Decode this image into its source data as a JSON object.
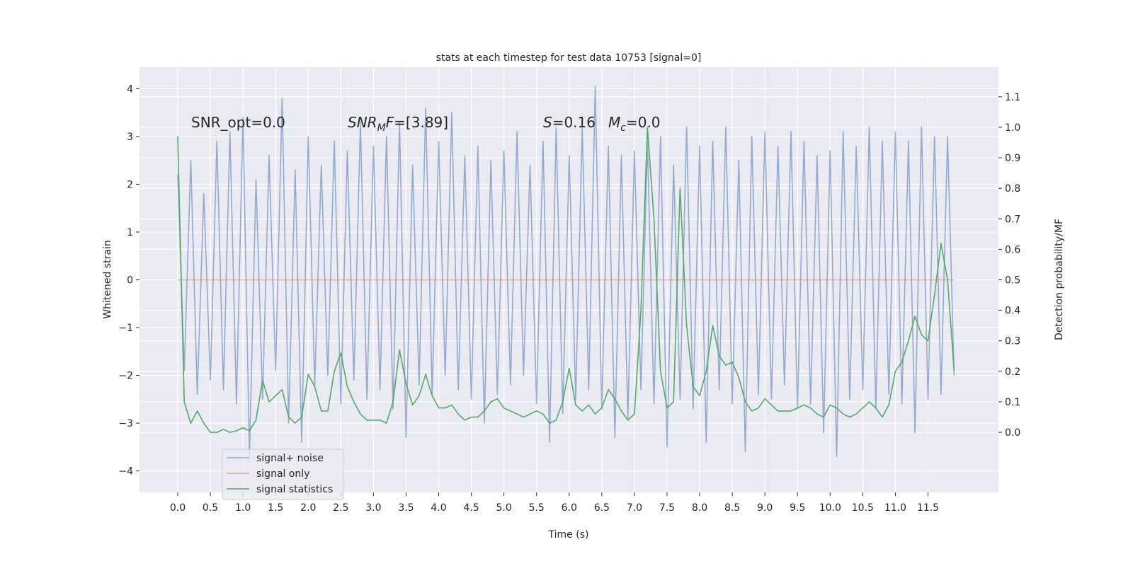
{
  "chart_data": {
    "type": "line",
    "title": "stats at each timestep for test data 10753 [signal=0]",
    "xlabel": "Time (s)",
    "ylabel": "Whitened strain",
    "y2label": "Detection probability/MF",
    "xlim": [
      -0.586,
      12.58
    ],
    "ylim": [
      -4.45,
      4.45
    ],
    "y2lim": [
      -0.197,
      1.197
    ],
    "xticks": [
      {
        "value": 0,
        "label": "0.0"
      },
      {
        "value": 0.5,
        "label": "0.5"
      },
      {
        "value": 1,
        "label": "1.0"
      },
      {
        "value": 1.5,
        "label": "1.5"
      },
      {
        "value": 2,
        "label": "2.0"
      },
      {
        "value": 2.5,
        "label": "2.5"
      },
      {
        "value": 3,
        "label": "3.0"
      },
      {
        "value": 3.5,
        "label": "3.5"
      },
      {
        "value": 4,
        "label": "4.0"
      },
      {
        "value": 4.5,
        "label": "4.5"
      },
      {
        "value": 5,
        "label": "5.0"
      },
      {
        "value": 5.5,
        "label": "5.5"
      },
      {
        "value": 6,
        "label": "6.0"
      },
      {
        "value": 6.5,
        "label": "6.5"
      },
      {
        "value": 7,
        "label": "7.0"
      },
      {
        "value": 7.5,
        "label": "7.5"
      },
      {
        "value": 8,
        "label": "8.0"
      },
      {
        "value": 8.5,
        "label": "8.5"
      },
      {
        "value": 9,
        "label": "9.0"
      },
      {
        "value": 9.5,
        "label": "9.5"
      },
      {
        "value": 10,
        "label": "10.0"
      },
      {
        "value": 10.5,
        "label": "10.5"
      },
      {
        "value": 11,
        "label": "11.0"
      },
      {
        "value": 11.5,
        "label": "11.5"
      }
    ],
    "yticks": [
      {
        "value": -4,
        "label": "−4"
      },
      {
        "value": -3,
        "label": "−3"
      },
      {
        "value": -2,
        "label": "−2"
      },
      {
        "value": -1,
        "label": "−1"
      },
      0,
      1,
      2,
      3,
      4
    ],
    "y2ticks": [
      {
        "value": 0,
        "label": "0.0"
      },
      {
        "value": 0.1,
        "label": "0.1"
      },
      {
        "value": 0.2,
        "label": "0.2"
      },
      {
        "value": 0.3,
        "label": "0.3"
      },
      {
        "value": 0.4,
        "label": "0.4"
      },
      {
        "value": 0.5,
        "label": "0.5"
      },
      {
        "value": 0.6,
        "label": "0.6"
      },
      {
        "value": 0.7,
        "label": "0.7"
      },
      {
        "value": 0.8,
        "label": "0.8"
      },
      {
        "value": 0.9,
        "label": "0.9"
      },
      {
        "value": 1,
        "label": "1.0"
      },
      {
        "value": 1.1,
        "label": "1.1"
      }
    ],
    "grid": true,
    "legend": "lower left",
    "x": [
      0,
      0.1,
      0.2,
      0.3,
      0.4,
      0.5,
      0.6,
      0.7,
      0.8,
      0.9,
      1,
      1.1,
      1.2,
      1.3,
      1.4,
      1.5,
      1.6,
      1.7,
      1.8,
      1.9,
      2,
      2.1,
      2.2,
      2.3,
      2.4,
      2.5,
      2.6,
      2.7,
      2.8,
      2.9,
      3,
      3.1,
      3.2,
      3.3,
      3.4,
      3.5,
      3.6,
      3.7,
      3.8,
      3.9,
      4,
      4.1,
      4.2,
      4.3,
      4.4,
      4.5,
      4.6,
      4.7,
      4.8,
      4.9,
      5,
      5.1,
      5.2,
      5.3,
      5.4,
      5.5,
      5.6,
      5.7,
      5.8,
      5.9,
      6,
      6.1,
      6.2,
      6.3,
      6.4,
      6.5,
      6.6,
      6.7,
      6.8,
      6.9,
      7,
      7.1,
      7.2,
      7.3,
      7.4,
      7.5,
      7.6,
      7.7,
      7.8,
      7.9,
      8,
      8.1,
      8.2,
      8.3,
      8.4,
      8.5,
      8.6,
      8.7,
      8.8,
      8.9,
      9,
      9.1,
      9.2,
      9.3,
      9.4,
      9.5,
      9.6,
      9.7,
      9.8,
      9.9,
      10,
      10.1,
      10.2,
      10.3,
      10.4,
      10.5,
      10.6,
      10.7,
      10.8,
      10.9,
      11,
      11.1,
      11.2,
      11.3,
      11.4,
      11.5,
      11.6,
      11.7,
      11.8,
      11.9
    ],
    "series": [
      {
        "name": "signal+ noise",
        "color": "#4c72b0",
        "alpha": 0.55,
        "values": [
          2.2,
          -1.9,
          2.5,
          -2.4,
          1.8,
          -2.1,
          2.9,
          -2.3,
          3.1,
          -2.6,
          3.4,
          -3.7,
          2.1,
          -2.5,
          2.6,
          -1.9,
          3.8,
          -3.0,
          2.3,
          -3.4,
          3.0,
          -2.2,
          2.4,
          -2.0,
          2.9,
          -2.6,
          2.7,
          -2.1,
          3.3,
          -2.5,
          2.8,
          -2.3,
          3.0,
          -2.7,
          3.3,
          -3.3,
          2.4,
          -2.2,
          3.6,
          -2.4,
          2.9,
          -2.0,
          3.5,
          -2.3,
          2.6,
          -2.5,
          2.8,
          -3.0,
          2.5,
          -2.4,
          2.7,
          -2.2,
          3.1,
          -2.0,
          2.4,
          -2.6,
          2.9,
          -3.4,
          3.2,
          -2.8,
          2.6,
          -2.5,
          3.2,
          -2.3,
          4.05,
          -2.7,
          2.8,
          -3.3,
          2.6,
          -2.9,
          2.7,
          -2.3,
          2.9,
          -2.6,
          3.0,
          -3.5,
          2.4,
          -2.5,
          3.2,
          -2.7,
          2.8,
          -3.4,
          2.9,
          -2.3,
          3.2,
          -2.6,
          2.5,
          -3.6,
          3.0,
          -2.4,
          3.1,
          -2.5,
          2.8,
          -2.2,
          3.1,
          -2.7,
          2.9,
          -2.6,
          2.6,
          -3.2,
          2.7,
          -3.7,
          3.1,
          -2.5,
          2.8,
          -2.3,
          3.2,
          -2.7,
          2.9,
          -2.4,
          3.1,
          -2.6,
          2.9,
          -3.2,
          3.2,
          -2.5,
          3.0,
          -2.4,
          3.0,
          -2.0
        ]
      },
      {
        "name": "signal only",
        "color": "#dd8452",
        "alpha": 0.6,
        "x": [
          0,
          11.9
        ],
        "values": [
          0,
          0
        ]
      },
      {
        "name": "signal statistics",
        "color": "#55a868",
        "alpha": 1,
        "axis": "y2",
        "values": [
          0.97,
          0.1,
          0.03,
          0.07,
          0.03,
          0.0,
          0.0,
          0.01,
          0.0,
          0.005,
          0.015,
          0.005,
          0.04,
          0.17,
          0.1,
          0.12,
          0.14,
          0.05,
          0.03,
          0.05,
          0.19,
          0.15,
          0.07,
          0.07,
          0.2,
          0.26,
          0.15,
          0.1,
          0.06,
          0.04,
          0.04,
          0.04,
          0.03,
          0.1,
          0.27,
          0.16,
          0.09,
          0.12,
          0.19,
          0.12,
          0.08,
          0.08,
          0.09,
          0.06,
          0.04,
          0.05,
          0.05,
          0.07,
          0.1,
          0.11,
          0.08,
          0.07,
          0.06,
          0.05,
          0.06,
          0.07,
          0.06,
          0.03,
          0.04,
          0.1,
          0.21,
          0.09,
          0.07,
          0.09,
          0.06,
          0.08,
          0.14,
          0.11,
          0.07,
          0.04,
          0.06,
          0.4,
          1.0,
          0.7,
          0.2,
          0.08,
          0.1,
          0.8,
          0.35,
          0.15,
          0.12,
          0.2,
          0.35,
          0.25,
          0.22,
          0.23,
          0.18,
          0.1,
          0.07,
          0.08,
          0.11,
          0.09,
          0.07,
          0.07,
          0.07,
          0.08,
          0.09,
          0.08,
          0.06,
          0.05,
          0.09,
          0.08,
          0.06,
          0.05,
          0.06,
          0.08,
          0.1,
          0.08,
          0.05,
          0.09,
          0.2,
          0.23,
          0.3,
          0.38,
          0.32,
          0.3,
          0.45,
          0.62,
          0.5,
          0.2
        ]
      }
    ],
    "annotations": [
      {
        "parts": [
          {
            "t": "SNR_opt=0.0"
          }
        ]
      },
      {
        "parts": [
          {
            "t": "SNR",
            "italic": true
          },
          {
            "t": "M",
            "italic": true,
            "sub": true
          },
          {
            "t": "F",
            "italic": true
          },
          {
            "t": "=[3.89]"
          }
        ]
      },
      {
        "parts": [
          {
            "t": "S",
            "italic": true
          },
          {
            "t": "=0.16"
          }
        ]
      },
      {
        "parts": [
          {
            "t": "M",
            "italic": true
          },
          {
            "t": "c",
            "italic": true,
            "sub": true
          },
          {
            "t": "=0.0"
          }
        ]
      }
    ]
  }
}
